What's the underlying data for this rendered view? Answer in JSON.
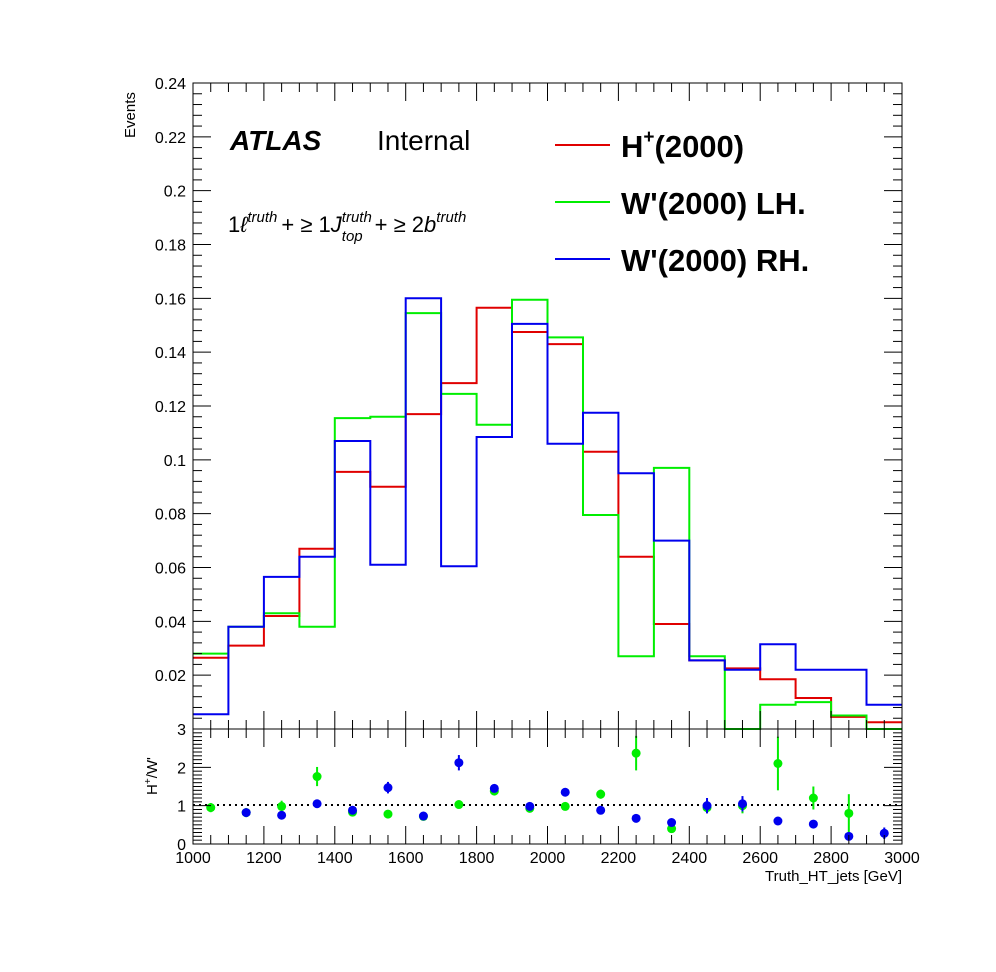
{
  "chart_data": [
    {
      "type": "step",
      "panel": "main",
      "ylabel": "Events",
      "ylim": [
        0,
        0.24
      ],
      "yticks": [
        "0.02",
        "0.04",
        "0.06",
        "0.08",
        "0.1",
        "0.12",
        "0.14",
        "0.16",
        "0.18",
        "0.2",
        "0.22",
        "0.24"
      ],
      "xlim": [
        1000,
        3000
      ],
      "bin_edges": [
        1000,
        1100,
        1200,
        1300,
        1400,
        1500,
        1600,
        1700,
        1800,
        1900,
        2000,
        2100,
        2200,
        2300,
        2400,
        2500,
        2600,
        2700,
        2800,
        2900,
        3000
      ],
      "series": [
        {
          "name": "H+(2000)",
          "color": "#e00000",
          "values": [
            0.0265,
            0.031,
            0.042,
            0.067,
            0.0955,
            0.09,
            0.117,
            0.1285,
            0.1565,
            0.1475,
            0.143,
            0.103,
            0.064,
            0.039,
            0.0255,
            0.0225,
            0.0185,
            0.0115,
            0.0045,
            0.0025
          ]
        },
        {
          "name": "W'(2000) LH.",
          "color": "#00ee00",
          "values": [
            0.028,
            0.038,
            0.043,
            0.038,
            0.1155,
            0.116,
            0.1545,
            0.1245,
            0.113,
            0.1595,
            0.1455,
            0.0795,
            0.027,
            0.097,
            0.027,
            0.0,
            0.009,
            0.01,
            0.005,
            0.0
          ]
        },
        {
          "name": "W'(2000) RH.",
          "color": "#0000ee",
          "values": [
            0.0055,
            0.038,
            0.0565,
            0.064,
            0.107,
            0.061,
            0.16,
            0.0605,
            0.1085,
            0.1505,
            0.106,
            0.1175,
            0.095,
            0.07,
            0.0255,
            0.022,
            0.0315,
            0.022,
            0.022,
            0.009
          ]
        }
      ],
      "annotations": {
        "atlas": "ATLAS",
        "status": "Internal",
        "selection": {
          "one": "1",
          "lepton": "ℓ",
          "truth1": "truth",
          "plus1": "+ ≥ 1",
          "jet": "J",
          "truth2": "truth",
          "top": "top",
          "plus2": "+ ≥ 2",
          "bquark": "b",
          "truth3": "truth"
        }
      },
      "legend": {
        "h_main": "H",
        "h_sup": "+",
        "h_tail": "(2000)",
        "lh": "W'(2000) LH.",
        "rh": "W'(2000) RH."
      }
    },
    {
      "type": "scatter",
      "panel": "ratio",
      "ylabel": "H+/W'",
      "ylabel_main": "H",
      "ylabel_sup": "+",
      "ylabel_tail": "/W'",
      "ylim": [
        0,
        3
      ],
      "yticks": [
        "0",
        "1",
        "2",
        "3"
      ],
      "xlim": [
        1000,
        3000
      ],
      "xticks": [
        "1000",
        "1200",
        "1400",
        "1600",
        "1800",
        "2000",
        "2200",
        "2400",
        "2600",
        "2800",
        "3000"
      ],
      "xlabel": "Truth_HT_jets [GeV]",
      "reference_line": 1,
      "series": [
        {
          "name": "H+/W' LH",
          "color": "#00ee00",
          "x": [
            1050,
            1150,
            1250,
            1350,
            1450,
            1550,
            1650,
            1750,
            1850,
            1950,
            2050,
            2150,
            2250,
            2350,
            2450,
            2550,
            2650,
            2750,
            2850
          ],
          "y": [
            0.95,
            0.82,
            0.98,
            1.76,
            0.83,
            0.78,
            0.72,
            1.03,
            1.38,
            0.93,
            0.98,
            1.3,
            2.37,
            0.4,
            0.95,
            1.0,
            2.1,
            1.2,
            0.8
          ],
          "err": [
            0.12,
            0.12,
            0.15,
            0.25,
            0.08,
            0.07,
            0.06,
            0.05,
            0.1,
            0.05,
            0.05,
            0.12,
            0.45,
            0.07,
            0.15,
            0.2,
            0.7,
            0.3,
            0.5
          ]
        },
        {
          "name": "H+/W' RH",
          "color": "#0000ee",
          "x": [
            1150,
            1250,
            1350,
            1450,
            1550,
            1650,
            1750,
            1850,
            1950,
            2050,
            2150,
            2250,
            2350,
            2450,
            2550,
            2650,
            2750,
            2850,
            2950
          ],
          "y": [
            0.82,
            0.75,
            1.05,
            0.88,
            1.47,
            0.73,
            2.12,
            1.45,
            0.98,
            1.35,
            0.88,
            0.67,
            0.56,
            1.0,
            1.05,
            0.6,
            0.52,
            0.2,
            0.28
          ],
          "err": [
            0.1,
            0.1,
            0.1,
            0.1,
            0.15,
            0.05,
            0.2,
            0.1,
            0.05,
            0.1,
            0.05,
            0.05,
            0.05,
            0.2,
            0.2,
            0.1,
            0.1,
            0.1,
            0.15
          ]
        }
      ]
    }
  ]
}
